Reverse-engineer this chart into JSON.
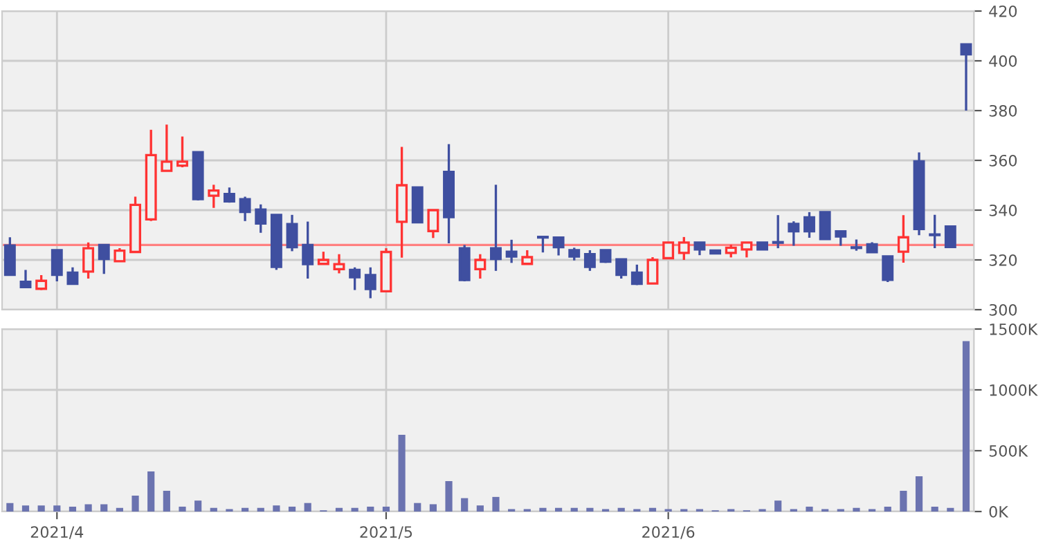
{
  "chart_data": [
    {
      "type": "candlestick",
      "categories": [
        null,
        null,
        null,
        "2021/4",
        null,
        null,
        null,
        null,
        null,
        null,
        null,
        null,
        null,
        null,
        null,
        null,
        null,
        null,
        null,
        null,
        null,
        null,
        null,
        null,
        "2021/5",
        null,
        null,
        null,
        null,
        null,
        null,
        null,
        null,
        null,
        null,
        null,
        null,
        null,
        null,
        null,
        null,
        null,
        "2021/6",
        null,
        null,
        null,
        null,
        null,
        null,
        null,
        null,
        null,
        null,
        null,
        null,
        null,
        null,
        null,
        null,
        null,
        null,
        null
      ],
      "ohlc": [
        [
          325.8,
          329.1,
          314,
          314
        ],
        [
          311.2,
          316,
          308.8,
          309.1
        ],
        [
          308.4,
          313.9,
          307.9,
          311.6
        ],
        [
          323.9,
          323.9,
          311.4,
          314
        ],
        [
          314.9,
          317,
          310.4,
          310.4
        ],
        [
          315.3,
          327,
          312.5,
          324.7
        ],
        [
          326,
          326,
          314.4,
          320.4
        ],
        [
          319.5,
          324.7,
          319.5,
          323.7
        ],
        [
          323.2,
          345.4,
          323.2,
          342.1
        ],
        [
          336.3,
          372.3,
          335.6,
          362.1
        ],
        [
          355.8,
          374.4,
          355.8,
          359.5
        ],
        [
          357.9,
          369.6,
          357.2,
          359.5
        ],
        [
          363.3,
          363.3,
          343.9,
          344.4
        ],
        [
          345.8,
          350.2,
          340.9,
          347.9
        ],
        [
          346.5,
          349.1,
          343,
          343.5
        ],
        [
          344.4,
          345.4,
          335.6,
          339.3
        ],
        [
          340.2,
          342.3,
          330.9,
          334.6
        ],
        [
          338.1,
          338.1,
          316,
          317.2
        ],
        [
          334.4,
          338.1,
          323.5,
          325.1
        ],
        [
          326,
          335.4,
          312.5,
          318.3
        ],
        [
          318.4,
          323.3,
          318.4,
          320
        ],
        [
          316.3,
          322.3,
          314.6,
          318.3
        ],
        [
          316,
          317,
          307.9,
          313
        ],
        [
          313.9,
          317,
          304.6,
          308.3
        ],
        [
          307.4,
          324.7,
          307.4,
          323.2
        ],
        [
          335.3,
          365.4,
          320.9,
          350
        ],
        [
          349.1,
          349.1,
          335.1,
          335.1
        ],
        [
          331.6,
          340,
          328.8,
          340
        ],
        [
          355.4,
          366.5,
          326.7,
          337.2
        ],
        [
          324.7,
          326,
          311.4,
          311.9
        ],
        [
          316.3,
          322.3,
          312.5,
          320
        ],
        [
          324.7,
          350.2,
          315.6,
          320.4
        ],
        [
          323.3,
          328.1,
          318.8,
          321.4
        ],
        [
          318.4,
          323.9,
          318.4,
          321.1
        ],
        [
          329.2,
          329.2,
          323,
          329
        ],
        [
          329,
          329,
          321.8,
          325.1
        ],
        [
          323.9,
          324.9,
          319.8,
          321.4
        ],
        [
          322.3,
          323.9,
          315.6,
          317.2
        ],
        [
          323.9,
          323.9,
          318.8,
          319.3
        ],
        [
          320.2,
          320.2,
          312.5,
          314
        ],
        [
          314.9,
          318.1,
          309.9,
          310.4
        ],
        [
          310.5,
          321.1,
          310.5,
          320
        ],
        [
          320.7,
          327,
          320.7,
          327
        ],
        [
          322.8,
          329.2,
          320,
          327
        ],
        [
          327,
          327,
          321.9,
          324.2
        ],
        [
          323.8,
          323.8,
          322.3,
          322.6
        ],
        [
          322.8,
          326.1,
          321,
          324.9
        ],
        [
          324.2,
          327,
          321,
          327
        ],
        [
          327,
          327,
          324.2,
          324.2
        ],
        [
          327,
          338,
          324.7,
          326.9
        ],
        [
          334.5,
          335.5,
          325.7,
          331.5
        ],
        [
          337.1,
          339.2,
          328.9,
          331.5
        ],
        [
          339.2,
          339.2,
          328.4,
          328.4
        ],
        [
          331.5,
          331.5,
          325.7,
          329.4
        ],
        [
          325,
          328.2,
          323.7,
          324.8
        ],
        [
          326.3,
          327.1,
          323.1,
          323.1
        ],
        [
          321.4,
          321.4,
          311.1,
          312
        ],
        [
          323.3,
          338,
          318.9,
          329.1
        ],
        [
          359.6,
          363.2,
          329.9,
          332.4
        ],
        [
          330.1,
          338.1,
          324.7,
          330
        ],
        [
          333.4,
          333.4,
          325.2,
          325.2
        ],
        [
          406.6,
          406.6,
          380,
          402.6
        ]
      ],
      "colors": [
        "#3f4fa0",
        "#3f4fa0",
        "#ff3333",
        "#3f4fa0",
        "#3f4fa0",
        "#ff3333",
        "#3f4fa0",
        "#ff3333",
        "#ff3333",
        "#ff3333",
        "#ff3333",
        "#ff3333",
        "#3f4fa0",
        "#ff3333",
        "#3f4fa0",
        "#3f4fa0",
        "#3f4fa0",
        "#3f4fa0",
        "#3f4fa0",
        "#3f4fa0",
        "#ff3333",
        "#ff3333",
        "#3f4fa0",
        "#3f4fa0",
        "#ff3333",
        "#ff3333",
        "#3f4fa0",
        "#ff3333",
        "#3f4fa0",
        "#3f4fa0",
        "#ff3333",
        "#3f4fa0",
        "#3f4fa0",
        "#ff3333",
        "#3f4fa0",
        "#3f4fa0",
        "#3f4fa0",
        "#3f4fa0",
        "#3f4fa0",
        "#3f4fa0",
        "#3f4fa0",
        "#ff3333",
        "#ff3333",
        "#ff3333",
        "#3f4fa0",
        "#3f4fa0",
        "#ff3333",
        "#ff3333",
        "#3f4fa0",
        "#3f4fa0",
        "#3f4fa0",
        "#3f4fa0",
        "#3f4fa0",
        "#3f4fa0",
        "#3f4fa0",
        "#3f4fa0",
        "#3f4fa0",
        "#ff3333",
        "#3f4fa0",
        "#3f4fa0",
        "#3f4fa0",
        "#3f4fa0"
      ],
      "ylim": [
        300,
        420
      ],
      "yticks": [
        300,
        320,
        340,
        360,
        380,
        400,
        420
      ],
      "ref_lines": [
        {
          "axis": "y",
          "value": 326,
          "color": "#ff8080"
        }
      ],
      "grid": true,
      "tick_labels": "y"
    },
    {
      "type": "bar",
      "categories": [
        null,
        null,
        null,
        "2021/4",
        null,
        null,
        null,
        null,
        null,
        null,
        null,
        null,
        null,
        null,
        null,
        null,
        null,
        null,
        null,
        null,
        null,
        null,
        null,
        null,
        "2021/5",
        null,
        null,
        null,
        null,
        null,
        null,
        null,
        null,
        null,
        null,
        null,
        null,
        null,
        null,
        null,
        null,
        null,
        "2021/6",
        null,
        null,
        null,
        null,
        null,
        null,
        null,
        null,
        null,
        null,
        null,
        null,
        null,
        null,
        null,
        null,
        null,
        null,
        null
      ],
      "values": [
        70000,
        50000,
        50000,
        50000,
        40000,
        60000,
        60000,
        30000,
        130000,
        330000,
        170000,
        40000,
        90000,
        30000,
        20000,
        30000,
        30000,
        50000,
        40000,
        70000,
        10000,
        30000,
        30000,
        40000,
        40000,
        630000,
        70000,
        60000,
        250000,
        110000,
        50000,
        120000,
        20000,
        20000,
        30000,
        30000,
        30000,
        30000,
        20000,
        30000,
        20000,
        30000,
        20000,
        20000,
        20000,
        10000,
        20000,
        10000,
        20000,
        90000,
        20000,
        40000,
        20000,
        20000,
        30000,
        20000,
        40000,
        170000,
        290000,
        40000,
        30000,
        1400000
      ],
      "color": "#6b73b0",
      "ylim": [
        0,
        1500000
      ],
      "yticks": [
        {
          "value": 0,
          "label": "0K"
        },
        {
          "value": 500000,
          "label": "500K"
        },
        {
          "value": 1000000,
          "label": "1000K"
        },
        {
          "value": 1500000,
          "label": "1500K"
        }
      ],
      "grid": true
    }
  ]
}
